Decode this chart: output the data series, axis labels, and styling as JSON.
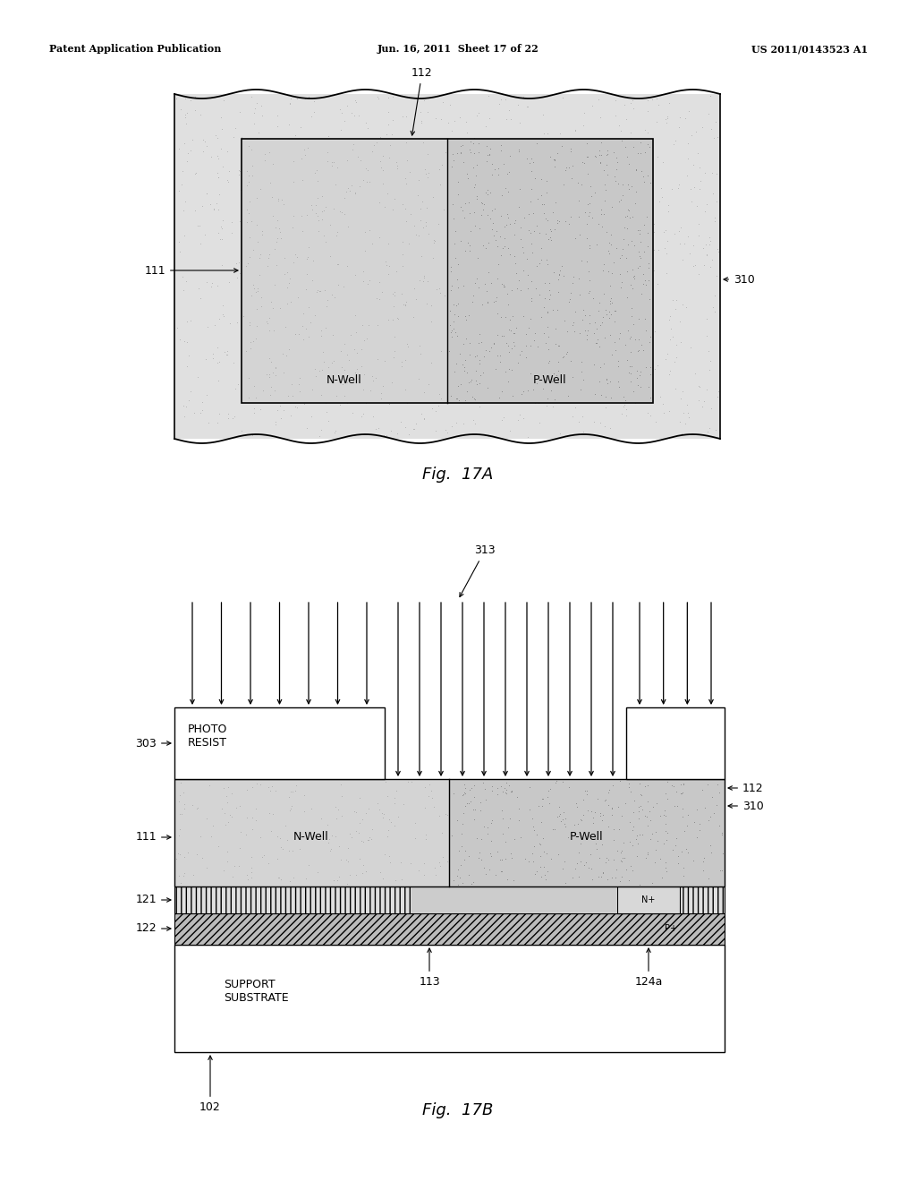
{
  "header_left": "Patent Application Publication",
  "header_mid": "Jun. 16, 2011  Sheet 17 of 22",
  "header_right": "US 2011/0143523 A1",
  "fig17a_caption": "Fig.  17A",
  "fig17b_caption": "Fig.  17B",
  "bg_color": "#ffffff"
}
